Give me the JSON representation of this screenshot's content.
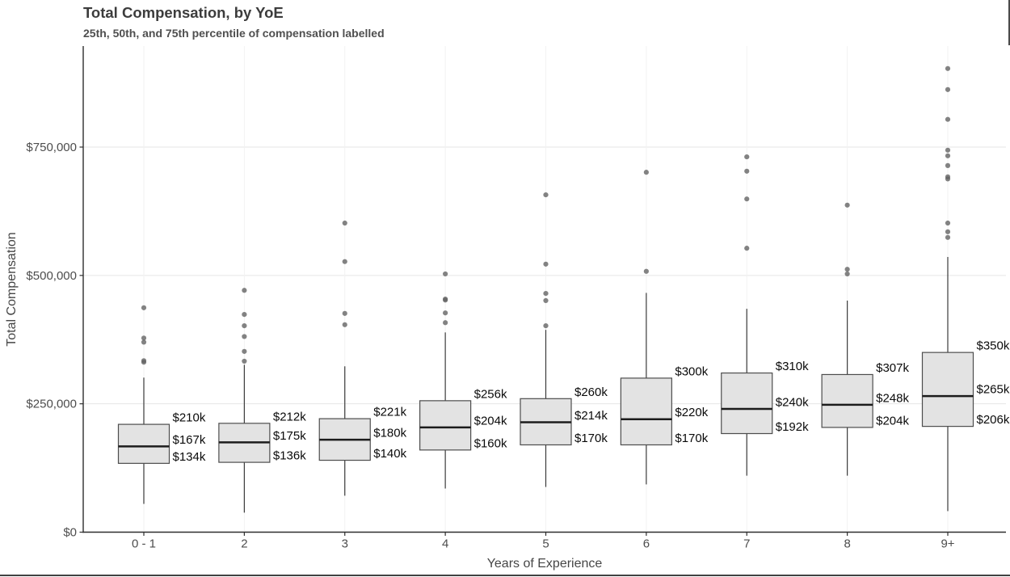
{
  "header": {
    "title": "Total Compensation, by YoE",
    "subtitle": "25th, 50th, and 75th percentile of compensation labelled"
  },
  "chart_data": {
    "type": "boxplot",
    "title": "Total Compensation, by YoE",
    "subtitle": "25th, 50th, and 75th percentile of compensation labelled",
    "xlabel": "Years of Experience",
    "ylabel": "Total Compensation",
    "ylim": [
      0,
      947000
    ],
    "grid": "horizontal-major and faint vertical per category",
    "y_ticks": [
      {
        "value": 0,
        "label": "$0"
      },
      {
        "value": 250000,
        "label": "$250,000"
      },
      {
        "value": 500000,
        "label": "$500,000"
      },
      {
        "value": 750000,
        "label": "$750,000"
      }
    ],
    "categories": [
      "0 - 1",
      "2",
      "3",
      "4",
      "5",
      "6",
      "7",
      "8",
      "9+"
    ],
    "series": [
      {
        "category": "0 - 1",
        "whisker_low": 55000,
        "q1": 134000,
        "median": 167000,
        "q3": 210000,
        "whisker_high": 301000,
        "labels": {
          "q3": "$210k",
          "median": "$167k",
          "q1": "$134k"
        },
        "outliers": [
          331000,
          334000,
          370000,
          378000,
          437000
        ]
      },
      {
        "category": "2",
        "whisker_low": 38000,
        "q1": 136000,
        "median": 175000,
        "q3": 212000,
        "whisker_high": 326000,
        "labels": {
          "q3": "$212k",
          "median": "$175k",
          "q1": "$136k"
        },
        "outliers": [
          333000,
          352000,
          381000,
          402000,
          424000,
          471000
        ]
      },
      {
        "category": "3",
        "whisker_low": 71000,
        "q1": 140000,
        "median": 180000,
        "q3": 221000,
        "whisker_high": 323000,
        "labels": {
          "q3": "$221k",
          "median": "$180k",
          "q1": "$140k"
        },
        "outliers": [
          404000,
          426000,
          527000,
          602000
        ]
      },
      {
        "category": "4",
        "whisker_low": 85000,
        "q1": 160000,
        "median": 204000,
        "q3": 256000,
        "whisker_high": 389000,
        "labels": {
          "q3": "$256k",
          "median": "$204k",
          "q1": "$160k"
        },
        "outliers": [
          408000,
          427000,
          452000,
          454000,
          503000
        ]
      },
      {
        "category": "5",
        "whisker_low": 88000,
        "q1": 170000,
        "median": 214000,
        "q3": 260000,
        "whisker_high": 394000,
        "labels": {
          "q3": "$260k",
          "median": "$214k",
          "q1": "$170k"
        },
        "outliers": [
          402000,
          451000,
          465000,
          522000,
          657000
        ]
      },
      {
        "category": "6",
        "whisker_low": 93000,
        "q1": 170000,
        "median": 220000,
        "q3": 300000,
        "whisker_high": 466000,
        "labels": {
          "q3": "$300k",
          "median": "$220k",
          "q1": "$170k"
        },
        "outliers": [
          508000,
          701000
        ]
      },
      {
        "category": "7",
        "whisker_low": 110000,
        "q1": 192000,
        "median": 240000,
        "q3": 310000,
        "whisker_high": 435000,
        "labels": {
          "q3": "$310k",
          "median": "$240k",
          "q1": "$192k"
        },
        "outliers": [
          553000,
          649000,
          703000,
          731000
        ]
      },
      {
        "category": "8",
        "whisker_low": 110000,
        "q1": 204000,
        "median": 248000,
        "q3": 307000,
        "whisker_high": 451000,
        "labels": {
          "q3": "$307k",
          "median": "$248k",
          "q1": "$204k"
        },
        "outliers": [
          503000,
          512000,
          637000
        ]
      },
      {
        "category": "9+",
        "whisker_low": 41000,
        "q1": 206000,
        "median": 265000,
        "q3": 350000,
        "whisker_high": 536000,
        "labels": {
          "q3": "$350k",
          "median": "$265k",
          "q1": "$206k"
        },
        "outliers": [
          574000,
          585000,
          602000,
          688000,
          692000,
          714000,
          733000,
          744000,
          804000,
          862000,
          903000
        ]
      }
    ],
    "style": {
      "box_fill": "#e3e3e3",
      "box_stroke": "#4d4d4d",
      "median_stroke": "#1c1c1c",
      "whisker_stroke": "#3a3a3a",
      "outlier_fill": "#606060",
      "hgrid_color": "#e6e6e6",
      "vgrid_color": "#f2f2f2",
      "axis_color": "#2e2e2e",
      "tick_label_color": "#4d4d4d",
      "value_label_color": "#0a0a0a"
    }
  }
}
